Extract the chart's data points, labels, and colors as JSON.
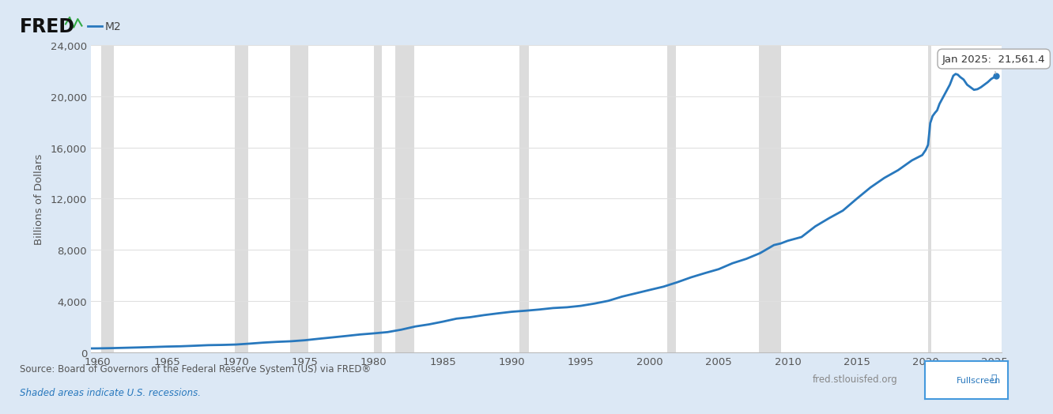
{
  "title": "M2",
  "ylabel": "Billions of Dollars",
  "xlim": [
    1959.5,
    2025.5
  ],
  "ylim": [
    0,
    24000
  ],
  "yticks": [
    0,
    4000,
    8000,
    12000,
    16000,
    20000,
    24000
  ],
  "xticks": [
    1960,
    1965,
    1970,
    1975,
    1980,
    1985,
    1990,
    1995,
    2000,
    2005,
    2010,
    2015,
    2020,
    2025
  ],
  "line_color": "#2878bd",
  "line_width": 2.0,
  "bg_color": "#dce8f5",
  "plot_bg_color": "#ffffff",
  "recession_color": "#c0c0c0",
  "recession_alpha": 0.55,
  "tooltip_text": "Jan 2025:  21,561.4",
  "source_text": "Source: Board of Governors of the Federal Reserve System (US) via FRED®",
  "recession_text": "Shaded areas indicate U.S. recessions.",
  "fred_url": "fred.stlouisfed.org",
  "recessions": [
    [
      1960.25,
      1961.17
    ],
    [
      1969.92,
      1970.92
    ],
    [
      1973.92,
      1975.25
    ],
    [
      1980.0,
      1980.58
    ],
    [
      1981.58,
      1982.92
    ],
    [
      1990.58,
      1991.25
    ],
    [
      2001.25,
      2001.92
    ],
    [
      2007.92,
      2009.5
    ],
    [
      2020.17,
      2020.42
    ]
  ],
  "m2_data": [
    [
      1959.5,
      298.2
    ],
    [
      1960.0,
      302.3
    ],
    [
      1961.0,
      321.4
    ],
    [
      1962.0,
      348.8
    ],
    [
      1963.0,
      376.3
    ],
    [
      1964.0,
      408.0
    ],
    [
      1965.0,
      442.3
    ],
    [
      1966.0,
      465.2
    ],
    [
      1967.0,
      507.2
    ],
    [
      1968.0,
      553.3
    ],
    [
      1969.0,
      571.4
    ],
    [
      1970.0,
      601.7
    ],
    [
      1971.0,
      672.5
    ],
    [
      1972.0,
      752.8
    ],
    [
      1973.0,
      812.3
    ],
    [
      1974.0,
      857.4
    ],
    [
      1975.0,
      936.3
    ],
    [
      1976.0,
      1051.3
    ],
    [
      1977.0,
      1159.8
    ],
    [
      1978.0,
      1270.7
    ],
    [
      1979.0,
      1386.8
    ],
    [
      1980.0,
      1474.0
    ],
    [
      1981.0,
      1572.8
    ],
    [
      1982.0,
      1764.4
    ],
    [
      1983.0,
      2010.5
    ],
    [
      1984.0,
      2175.8
    ],
    [
      1985.0,
      2388.5
    ],
    [
      1986.0,
      2625.3
    ],
    [
      1987.0,
      2739.4
    ],
    [
      1988.0,
      2901.6
    ],
    [
      1989.0,
      3037.3
    ],
    [
      1990.0,
      3162.4
    ],
    [
      1991.0,
      3243.7
    ],
    [
      1992.0,
      3337.3
    ],
    [
      1993.0,
      3452.8
    ],
    [
      1994.0,
      3512.5
    ],
    [
      1995.0,
      3624.3
    ],
    [
      1996.0,
      3803.1
    ],
    [
      1997.0,
      4017.3
    ],
    [
      1998.0,
      4348.4
    ],
    [
      1999.0,
      4606.0
    ],
    [
      2000.0,
      4867.5
    ],
    [
      2001.0,
      5123.3
    ],
    [
      2002.0,
      5469.5
    ],
    [
      2003.0,
      5853.0
    ],
    [
      2004.0,
      6180.9
    ],
    [
      2005.0,
      6490.6
    ],
    [
      2006.0,
      6952.6
    ],
    [
      2007.0,
      7296.7
    ],
    [
      2008.0,
      7743.3
    ],
    [
      2009.0,
      8371.8
    ],
    [
      2009.5,
      8500.0
    ],
    [
      2010.0,
      8706.2
    ],
    [
      2011.0,
      9000.9
    ],
    [
      2012.0,
      9834.3
    ],
    [
      2013.0,
      10475.3
    ],
    [
      2014.0,
      11066.5
    ],
    [
      2015.0,
      11988.1
    ],
    [
      2016.0,
      12873.5
    ],
    [
      2017.0,
      13616.5
    ],
    [
      2018.0,
      14222.3
    ],
    [
      2019.0,
      14986.3
    ],
    [
      2019.75,
      15400.0
    ],
    [
      2020.0,
      15800.0
    ],
    [
      2020.17,
      16200.0
    ],
    [
      2020.33,
      17900.0
    ],
    [
      2020.5,
      18450.0
    ],
    [
      2020.67,
      18700.0
    ],
    [
      2020.83,
      18900.0
    ],
    [
      2021.0,
      19400.0
    ],
    [
      2021.25,
      19900.0
    ],
    [
      2021.5,
      20400.0
    ],
    [
      2021.75,
      20900.0
    ],
    [
      2022.0,
      21600.0
    ],
    [
      2022.17,
      21740.0
    ],
    [
      2022.33,
      21680.0
    ],
    [
      2022.5,
      21500.0
    ],
    [
      2022.75,
      21300.0
    ],
    [
      2023.0,
      20900.0
    ],
    [
      2023.25,
      20700.0
    ],
    [
      2023.5,
      20500.0
    ],
    [
      2023.75,
      20550.0
    ],
    [
      2024.0,
      20700.0
    ],
    [
      2024.25,
      20900.0
    ],
    [
      2024.5,
      21100.0
    ],
    [
      2024.75,
      21350.0
    ],
    [
      2025.08,
      21561.4
    ]
  ]
}
